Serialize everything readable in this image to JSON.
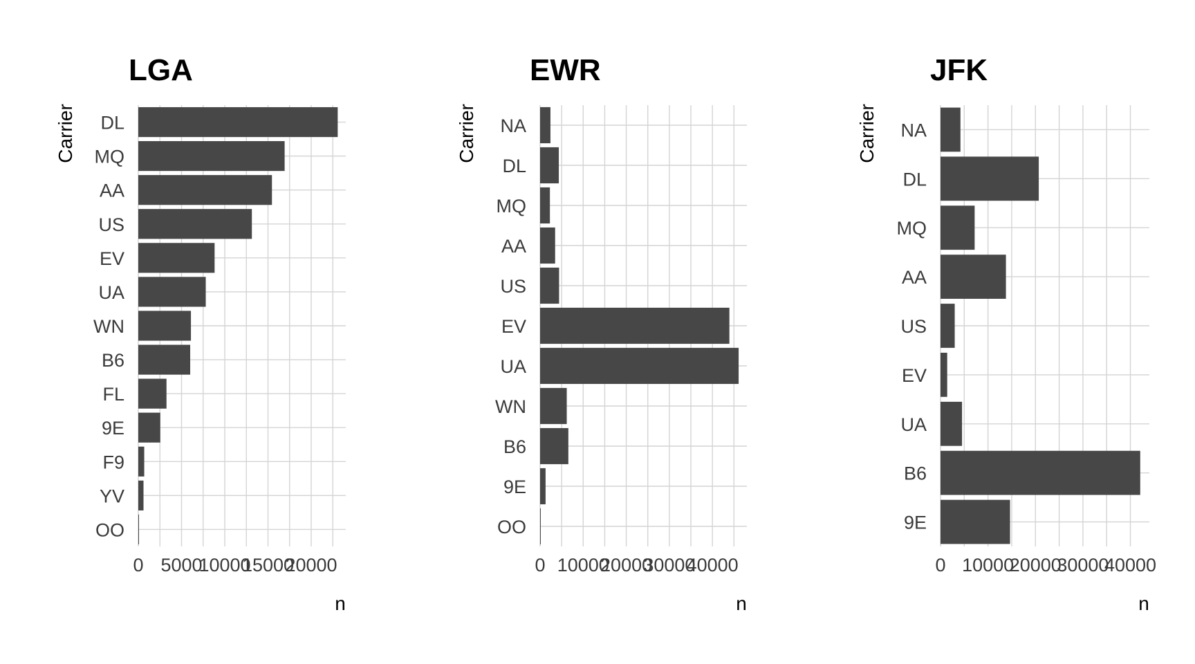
{
  "colors": {
    "bar": "#474747",
    "grid": "#d4d4d4",
    "background": "#ffffff"
  },
  "chart_data": [
    {
      "type": "bar",
      "orientation": "horizontal",
      "title": "LGA",
      "xlabel": "n",
      "ylabel": "Carrier",
      "categories": [
        "DL",
        "MQ",
        "AA",
        "US",
        "EV",
        "UA",
        "WN",
        "B6",
        "FL",
        "9E",
        "F9",
        "YV",
        "OO"
      ],
      "values": [
        23067,
        16928,
        15459,
        13136,
        8826,
        7803,
        6087,
        6002,
        3260,
        2541,
        685,
        601,
        26
      ],
      "xticks": [
        0,
        5000,
        10000,
        15000,
        20000
      ],
      "xtick_labels": [
        "0",
        "5000",
        "10000",
        "15000",
        "20000"
      ],
      "xlim": [
        0,
        24000
      ],
      "grid": true
    },
    {
      "type": "bar",
      "orientation": "horizontal",
      "title": "EWR",
      "xlabel": "n",
      "ylabel": "Carrier",
      "categories": [
        "NA",
        "DL",
        "MQ",
        "AA",
        "US",
        "EV",
        "UA",
        "WN",
        "B6",
        "9E",
        "OO"
      ],
      "values": [
        2400,
        4342,
        2276,
        3487,
        4405,
        43939,
        46087,
        6188,
        6557,
        1268,
        6
      ],
      "xticks": [
        0,
        10000,
        20000,
        30000,
        40000
      ],
      "xtick_labels": [
        "0",
        "10000",
        "20000",
        "30000",
        "40000"
      ],
      "xlim": [
        0,
        48000
      ],
      "grid": true
    },
    {
      "type": "bar",
      "orientation": "horizontal",
      "title": "JFK",
      "xlabel": "n",
      "ylabel": "Carrier",
      "categories": [
        "NA",
        "DL",
        "MQ",
        "AA",
        "US",
        "EV",
        "UA",
        "B6",
        "9E"
      ],
      "values": [
        4200,
        20701,
        7193,
        13783,
        2995,
        1408,
        4534,
        42076,
        14651
      ],
      "xticks": [
        0,
        10000,
        20000,
        30000,
        40000
      ],
      "xtick_labels": [
        "0",
        "10000",
        "20000",
        "30000",
        "40000"
      ],
      "xlim": [
        0,
        44000
      ],
      "grid": true
    }
  ]
}
